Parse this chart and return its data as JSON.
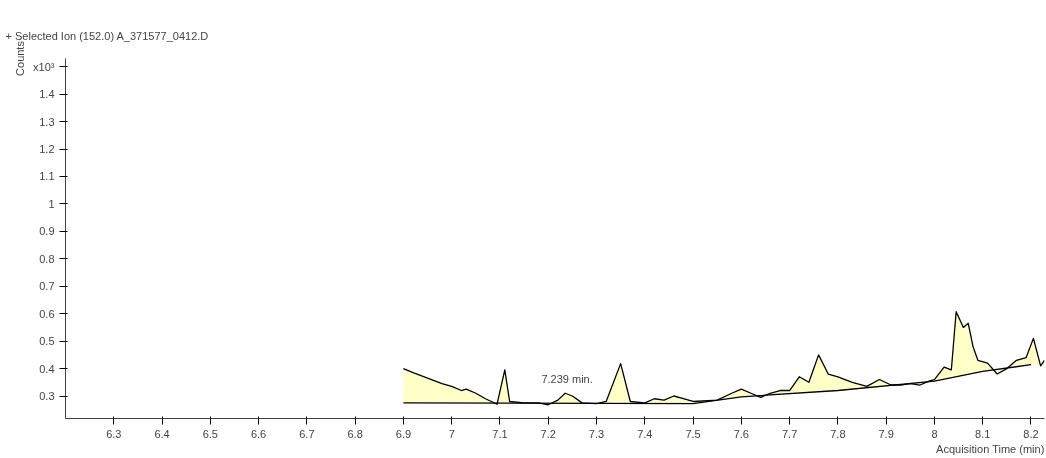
{
  "chart_data": {
    "type": "line",
    "title": "+ Selected Ion (152.0) A_371577_0412.D",
    "xlabel": "Acquisition Time (min)",
    "ylabel": "Counts",
    "xlim": [
      6.2,
      8.228
    ],
    "ylim": [
      0.218,
      1.53
    ],
    "xticks": [
      6.3,
      6.4,
      6.5,
      6.6,
      6.7,
      6.8,
      6.9,
      7,
      7.1,
      7.2,
      7.3,
      7.4,
      7.5,
      7.6,
      7.7,
      7.8,
      7.9,
      8,
      8.1,
      8.2
    ],
    "yticks": [
      0.3,
      0.4,
      0.5,
      0.6,
      0.7,
      0.8,
      0.9,
      1,
      1.1,
      1.2,
      1.3,
      1.4,
      {
        "value": 1.5,
        "label": "x10³"
      }
    ],
    "grid": false,
    "marker": "none",
    "line_style": "solid",
    "annotations": [
      {
        "text": "7.239 min.",
        "x": 7.239,
        "y": 0.31
      }
    ],
    "series": [
      {
        "color": "#000000",
        "x": [
          6.9,
          6.92,
          6.95,
          6.98,
          7.0,
          7.02,
          7.03,
          7.05,
          7.07,
          7.094,
          7.11,
          7.12,
          7.15,
          7.18,
          7.2,
          7.22,
          7.235,
          7.25,
          7.27,
          7.3,
          7.32,
          7.35,
          7.37,
          7.4,
          7.42,
          7.44,
          7.46,
          7.48,
          7.5,
          7.55,
          7.58,
          7.6,
          7.62,
          7.64,
          7.66,
          7.68,
          7.7,
          7.72,
          7.74,
          7.76,
          7.78,
          7.8,
          7.83,
          7.86,
          7.886,
          7.91,
          7.93,
          7.95,
          7.97,
          7.99,
          8.0,
          8.02,
          8.035,
          8.045,
          8.06,
          8.07,
          8.08,
          8.09,
          8.11,
          8.13,
          8.15,
          8.17,
          8.19,
          8.205,
          8.22,
          8.228
        ],
        "values": [
          0.4,
          0.385,
          0.365,
          0.345,
          0.335,
          0.32,
          0.325,
          0.31,
          0.29,
          0.27,
          0.395,
          0.28,
          0.275,
          0.275,
          0.268,
          0.285,
          0.31,
          0.3,
          0.275,
          0.272,
          0.28,
          0.418,
          0.28,
          0.275,
          0.29,
          0.285,
          0.3,
          0.29,
          0.28,
          0.285,
          0.31,
          0.325,
          0.31,
          0.295,
          0.31,
          0.32,
          0.32,
          0.37,
          0.35,
          0.45,
          0.38,
          0.37,
          0.35,
          0.335,
          0.36,
          0.34,
          0.34,
          0.345,
          0.34,
          0.355,
          0.36,
          0.405,
          0.395,
          0.607,
          0.55,
          0.565,
          0.48,
          0.43,
          0.42,
          0.38,
          0.4,
          0.43,
          0.44,
          0.51,
          0.41,
          0.43
        ],
        "lower": [
          0.275,
          0.275,
          0.275,
          0.275,
          0.275,
          0.275,
          0.275,
          0.274,
          0.274,
          0.274,
          0.274,
          0.274,
          0.274,
          0.273,
          0.273,
          0.273,
          0.273,
          0.273,
          0.273,
          0.273,
          0.273,
          0.273,
          0.272,
          0.272,
          0.272,
          0.272,
          0.272,
          0.272,
          0.272,
          0.285,
          0.292,
          0.297,
          0.299,
          0.301,
          0.304,
          0.306,
          0.309,
          0.311,
          0.313,
          0.315,
          0.318,
          0.32,
          0.325,
          0.33,
          0.334,
          0.338,
          0.341,
          0.345,
          0.348,
          0.352,
          0.354,
          0.361,
          0.366,
          0.37,
          0.375,
          0.379,
          0.383,
          0.386,
          0.392,
          0.397,
          0.402,
          0.407,
          0.411,
          0.414,
          0.414,
          0.414
        ],
        "upper": [
          0.4,
          0.385,
          0.365,
          0.345,
          0.335,
          0.32,
          0.325,
          0.31,
          0.29,
          0.27,
          0.395,
          0.28,
          0.275,
          0.275,
          0.268,
          0.285,
          0.31,
          0.3,
          0.275,
          0.272,
          0.28,
          0.418,
          0.28,
          0.275,
          0.29,
          0.285,
          0.3,
          0.29,
          0.28,
          0.285,
          0.31,
          0.325,
          0.31,
          0.295,
          0.31,
          0.32,
          0.32,
          0.37,
          0.35,
          0.45,
          0.38,
          0.37,
          0.35,
          0.335,
          0.36,
          0.34,
          0.34,
          0.345,
          0.34,
          0.355,
          0.36,
          0.405,
          0.395,
          0.607,
          0.55,
          0.565,
          0.48,
          0.43,
          0.42,
          0.38,
          0.4,
          0.43,
          0.44,
          0.51,
          0.41,
          0.43
        ]
      },
      {
        "color": "#000000",
        "x": [
          6.9,
          7.5,
          7.6,
          7.8,
          8.0,
          8.1,
          8.2
        ],
        "values": [
          0.275,
          0.272,
          0.297,
          0.32,
          0.354,
          0.39,
          0.414
        ]
      }
    ]
  }
}
